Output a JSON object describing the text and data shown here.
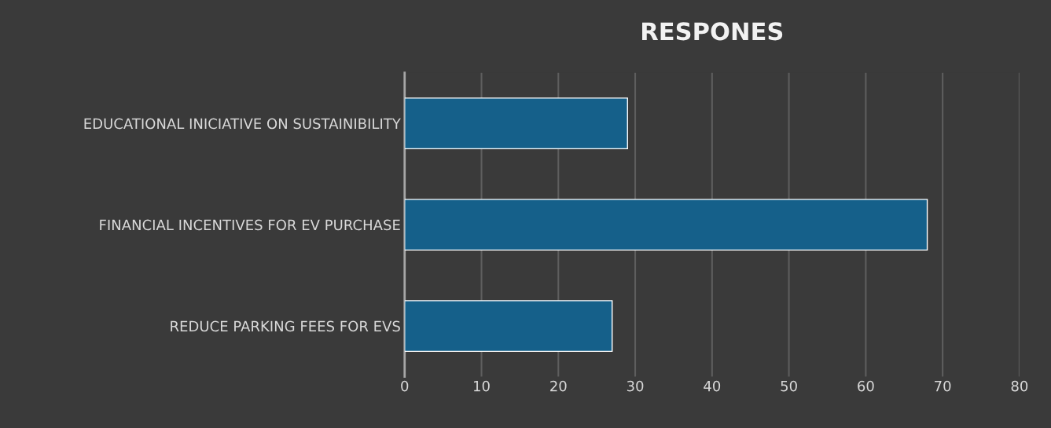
{
  "chart_data": {
    "type": "bar",
    "orientation": "horizontal",
    "title": "RESPONES",
    "categories": [
      "EDUCATIONAL INICIATIVE ON SUSTAINIBILITY",
      "FINANCIAL INCENTIVES FOR EV PURCHASE",
      "REDUCE PARKING FEES FOR EVS"
    ],
    "values": [
      29,
      68,
      27
    ],
    "color": "#15608a",
    "xlim": [
      0,
      80
    ],
    "xticks": [
      0,
      10,
      20,
      30,
      40,
      50,
      60,
      70,
      80
    ],
    "grid": "x",
    "legend": false
  }
}
